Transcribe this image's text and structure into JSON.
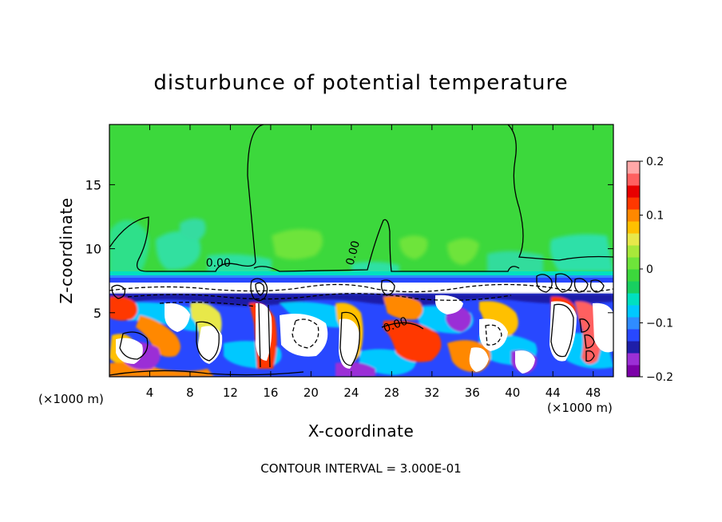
{
  "chart_data": {
    "type": "heatmap",
    "title": "disturbunce of potential temperature",
    "xlabel": "X-coordinate",
    "ylabel": "Z-coordinate",
    "x_unit_left": "(×1000 m)",
    "x_unit_right": "(×1000 m)",
    "xlim": [
      0,
      50
    ],
    "ylim": [
      0,
      19.7
    ],
    "x_ticks": [
      4,
      8,
      12,
      16,
      20,
      24,
      28,
      32,
      36,
      40,
      44,
      48
    ],
    "x_tick_labels": [
      "4",
      "8",
      "12",
      "16",
      "20",
      "24",
      "28",
      "32",
      "36",
      "40",
      "44",
      "48"
    ],
    "y_ticks": [
      5,
      10,
      15
    ],
    "y_tick_labels": [
      "5",
      "10",
      "15"
    ],
    "colorbar": {
      "range": [
        -0.2,
        0.2
      ],
      "tick_values": [
        0.2,
        0.1,
        0,
        -0.1,
        -0.2
      ],
      "tick_labels": [
        "0.2",
        "0.1",
        "0",
        "−0.1",
        "−0.2"
      ],
      "colors": [
        "#7b00a8",
        "#9b2fd6",
        "#1e1ea8",
        "#2848ff",
        "#2f8cff",
        "#00c8ff",
        "#00e0c0",
        "#18d060",
        "#3cd83c",
        "#6ee43a",
        "#a8e83a",
        "#e8e84a",
        "#ffc000",
        "#ff8800",
        "#ff3800",
        "#e80000",
        "#ff6060",
        "#ffa8a8"
      ]
    },
    "contour_labels": [
      {
        "x": 10.8,
        "y": 8.6,
        "text": "0.00"
      },
      {
        "x": 24.5,
        "y": 9.6,
        "text": "0.00"
      },
      {
        "x": 28.5,
        "y": 3.8,
        "text": "0.00"
      }
    ],
    "footer": "CONTOUR INTERVAL = 3.000E-01"
  }
}
